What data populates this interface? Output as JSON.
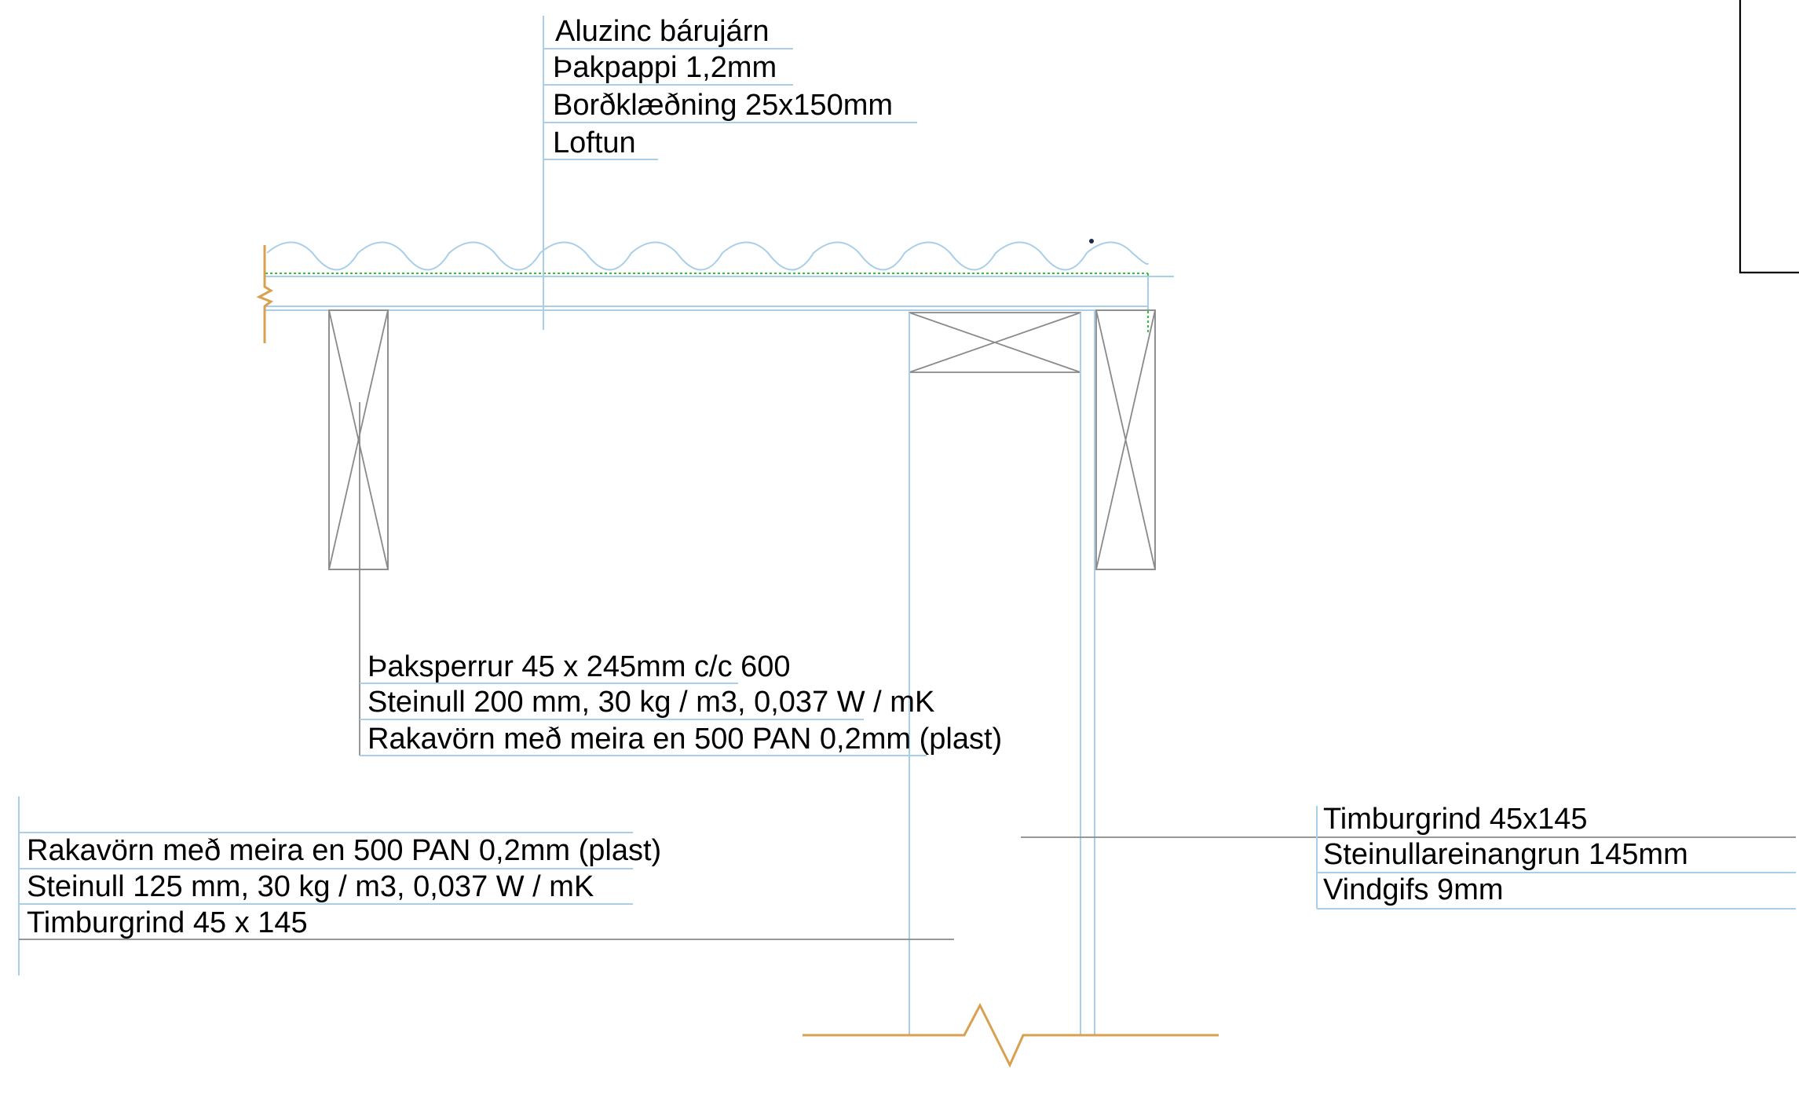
{
  "colors": {
    "leader_line": "#a9cfe8",
    "member_outline": "#8a8a8a",
    "break_line": "#d9a050",
    "membrane": "#36c236",
    "text": "#000000"
  },
  "roof_layers": [
    "Aluzinc bárujárn",
    "Þakpappi 1,2mm",
    "Borðklæðning 25x150mm",
    "Loftun"
  ],
  "rafter_layers": [
    "Þaksperrur 45 x 245mm c/c 600",
    "Steinull 200 mm, 30 kg / m3, 0,037 W / mK",
    "Rakavörn með meira en 500 PAN  0,2mm (plast)"
  ],
  "inner_wall_layers": [
    "Rakavörn með meira en 500 PAN  0,2mm (plast)",
    "Steinull 125 mm, 30 kg / m3, 0,037 W / mK",
    "Timburgrind 45 x 145"
  ],
  "outer_wall_layers": [
    "Timburgrind 45x145",
    "Steinullareinangrun 145mm",
    "Vindgifs 9mm"
  ]
}
